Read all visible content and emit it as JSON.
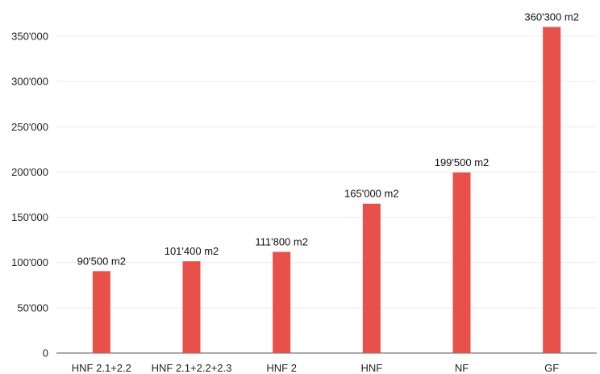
{
  "chart_data": {
    "type": "bar",
    "categories": [
      "HNF 2.1+2.2",
      "HNF 2.1+2.2+2.3",
      "HNF 2",
      "HNF",
      "NF",
      "GF"
    ],
    "values": [
      90500,
      101400,
      111800,
      165000,
      199500,
      360300
    ],
    "data_labels": [
      "90'500 m2",
      "101'400 m2",
      "111'800 m2",
      "165'000 m2",
      "199'500 m2",
      "360'300 m2"
    ],
    "yticks": [
      0,
      50000,
      100000,
      150000,
      200000,
      250000,
      300000,
      350000
    ],
    "ytick_labels": [
      "0",
      "50'000",
      "100'000",
      "150'000",
      "200'000",
      "250'000",
      "300'000",
      "350'000"
    ],
    "ylim": [
      0,
      350000
    ],
    "title": "",
    "xlabel": "",
    "ylabel": "",
    "grid": true,
    "legend": "none",
    "bar_color": "#e8504a"
  }
}
